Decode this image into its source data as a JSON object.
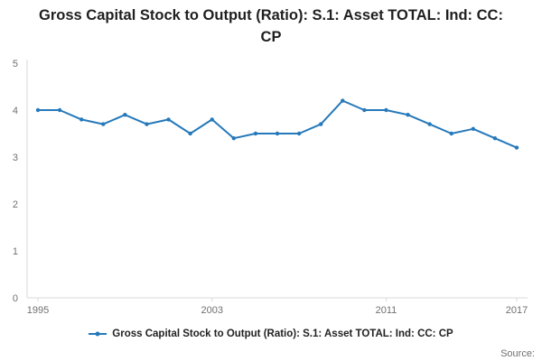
{
  "title": "Gross Capital Stock to Output (Ratio): S.1: Asset TOTAL: Ind: CC: CP",
  "legend": {
    "label": "Gross Capital Stock to Output (Ratio): S.1: Asset TOTAL: Ind: CC: CP"
  },
  "source_label": "Source:",
  "colors": {
    "line": "#2579ba",
    "axis": "#d9d9d9",
    "tick_text": "#707070",
    "title_text": "#1f1f1f"
  },
  "chart_data": {
    "type": "line",
    "title": "Gross Capital Stock to Output (Ratio): S.1: Asset TOTAL: Ind: CC: CP",
    "x": [
      1995,
      1996,
      1997,
      1998,
      1999,
      2000,
      2001,
      2002,
      2003,
      2004,
      2005,
      2006,
      2007,
      2008,
      2009,
      2010,
      2011,
      2012,
      2013,
      2014,
      2015,
      2016,
      2017
    ],
    "series": [
      {
        "name": "Gross Capital Stock to Output (Ratio): S.1: Asset TOTAL: Ind: CC: CP",
        "values": [
          4.0,
          4.0,
          3.8,
          3.7,
          3.9,
          3.7,
          3.8,
          3.5,
          3.8,
          3.4,
          3.5,
          3.5,
          3.5,
          3.7,
          4.2,
          4.0,
          4.0,
          3.9,
          3.7,
          3.5,
          3.6,
          3.4,
          3.2
        ]
      }
    ],
    "xlabel": "",
    "ylabel": "",
    "ylim": [
      0,
      5
    ],
    "yticks": [
      0,
      1,
      2,
      3,
      4,
      5
    ],
    "xticks": [
      1995,
      2003,
      2011,
      2017
    ],
    "grid": false,
    "legend_position": "bottom",
    "markers": true
  }
}
